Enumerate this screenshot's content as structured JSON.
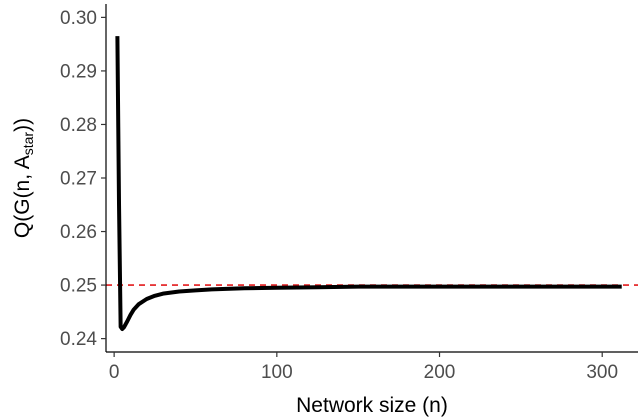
{
  "chart_data": {
    "type": "line",
    "title": "",
    "xlabel": "Network size (n)",
    "ylabel": {
      "prefix": "Q(G(n, A",
      "subscript": "star",
      "suffix": "))"
    },
    "xlim": [
      -5,
      322
    ],
    "ylim": [
      0.2375,
      0.3025
    ],
    "x_ticks": [
      0,
      100,
      200,
      300
    ],
    "x_tick_labels": [
      "0",
      "100",
      "200",
      "300"
    ],
    "y_ticks": [
      0.24,
      0.25,
      0.26,
      0.27,
      0.28,
      0.29,
      0.3
    ],
    "y_tick_labels": [
      "0.24",
      "0.25",
      "0.26",
      "0.27",
      "0.28",
      "0.29",
      "0.30"
    ],
    "grid": false,
    "legend": "none",
    "series": [
      {
        "color": "#000000",
        "x": [
          2,
          3,
          4,
          5,
          6,
          8,
          10,
          12,
          15,
          20,
          25,
          30,
          40,
          50,
          60,
          80,
          100,
          125,
          150,
          200,
          250,
          312
        ],
        "y": [
          0.2965,
          0.265,
          0.2422,
          0.2418,
          0.2421,
          0.2432,
          0.2444,
          0.2454,
          0.2464,
          0.2474,
          0.248,
          0.2484,
          0.2488,
          0.249,
          0.2492,
          0.2494,
          0.2495,
          0.2496,
          0.2497,
          0.2497,
          0.2497,
          0.2497
        ]
      }
    ],
    "reference_line": {
      "orientation": "horizontal",
      "y": 0.25,
      "color": "#e31a1c",
      "style": "dashed"
    }
  }
}
